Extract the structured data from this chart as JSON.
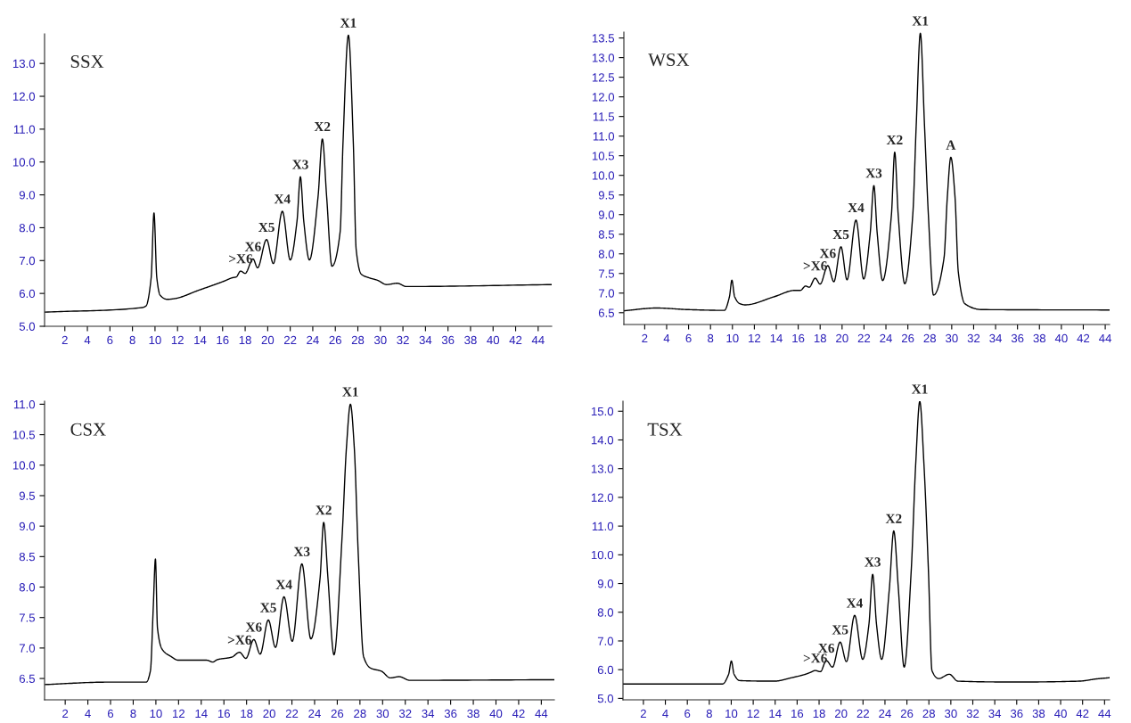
{
  "chart_data": [
    {
      "type": "line",
      "title": "SSX",
      "xlim": [
        0.2,
        45.2
      ],
      "ylim": [
        5.0,
        13.9
      ],
      "xticks": [
        2,
        4,
        6,
        8,
        10,
        12,
        14,
        16,
        18,
        20,
        22,
        24,
        26,
        28,
        30,
        32,
        34,
        36,
        38,
        40,
        42,
        44
      ],
      "yticks": [
        {
          "value": 5,
          "label": "5.0"
        },
        {
          "value": 6,
          "label": "6.0"
        },
        {
          "value": 7,
          "label": "7.0"
        },
        {
          "value": 8,
          "label": "8.0"
        },
        {
          "value": 9,
          "label": "9.0"
        },
        {
          "value": 10,
          "label": "10.0"
        },
        {
          "value": 11,
          "label": "11.0"
        },
        {
          "value": 12,
          "label": "12.0"
        },
        {
          "value": 13,
          "label": "13.0"
        }
      ],
      "series": [
        {
          "color": "#000000",
          "x": [
            0.2,
            8.87,
            9.2,
            9.66,
            9.91,
            10.16,
            10.45,
            11.1,
            11.7,
            13.9,
            16.1,
            16.9,
            17.2,
            17.6,
            18.0,
            18.7,
            19.1,
            19.9,
            20.5,
            21.3,
            22.0,
            22.6,
            22.9,
            23.2,
            23.7,
            24.47,
            24.85,
            25.23,
            25.7,
            26.43,
            26.68,
            27.16,
            27.6,
            27.85,
            28.3,
            28.96,
            29.75,
            30.55,
            31.5,
            32.3,
            45.2
          ],
          "values": [
            5.43,
            5.57,
            5.62,
            6.48,
            8.45,
            6.48,
            5.95,
            5.82,
            5.84,
            6.1,
            6.37,
            6.48,
            6.5,
            6.68,
            6.61,
            7.05,
            6.78,
            7.64,
            6.91,
            8.5,
            7.02,
            8.2,
            9.55,
            8.2,
            7.02,
            8.95,
            10.7,
            8.95,
            6.83,
            7.88,
            10.56,
            13.86,
            10.56,
            7.34,
            6.59,
            6.48,
            6.4,
            6.27,
            6.31,
            6.21,
            6.27
          ]
        }
      ],
      "annotations": [
        {
          "text": ">X6",
          "x": 17.6,
          "y": 6.68
        },
        {
          "text": "X6",
          "x": 18.7,
          "y": 7.05
        },
        {
          "text": "X5",
          "x": 19.9,
          "y": 7.64
        },
        {
          "text": "X4",
          "x": 21.3,
          "y": 8.5
        },
        {
          "text": "X3",
          "x": 22.9,
          "y": 9.55
        },
        {
          "text": "X2",
          "x": 24.85,
          "y": 10.7
        },
        {
          "text": "X1",
          "x": 27.16,
          "y": 13.86
        }
      ]
    },
    {
      "type": "line",
      "title": "WSX",
      "xlim": [
        0.1,
        44.4
      ],
      "ylim": [
        6.2,
        13.65
      ],
      "xticks": [
        2,
        4,
        6,
        8,
        10,
        12,
        14,
        16,
        18,
        20,
        22,
        24,
        26,
        28,
        30,
        32,
        34,
        36,
        38,
        40,
        42,
        44
      ],
      "yticks": [
        6.5,
        {
          "value": 7,
          "label": "7.0"
        },
        7.5,
        {
          "value": 8,
          "label": "8.0"
        },
        8.5,
        {
          "value": 9,
          "label": "9.0"
        },
        9.5,
        {
          "value": 10,
          "label": "10.0"
        },
        10.5,
        {
          "value": 11,
          "label": "11.0"
        },
        11.5,
        {
          "value": 12,
          "label": "12.0"
        },
        12.5,
        {
          "value": 13,
          "label": "13.0"
        },
        13.5
      ],
      "series": [
        {
          "color": "#000000",
          "x": [
            0.1,
            3.1,
            5.94,
            9.26,
            9.73,
            9.95,
            10.2,
            10.68,
            11.15,
            13.83,
            15.7,
            16.2,
            16.67,
            17.0,
            17.55,
            18.0,
            18.7,
            19.25,
            19.9,
            20.45,
            21.27,
            21.97,
            22.57,
            22.9,
            23.2,
            23.7,
            24.5,
            24.8,
            25.12,
            25.72,
            26.45,
            26.76,
            27.14,
            27.52,
            27.87,
            28.34,
            29.3,
            29.6,
            29.92,
            30.3,
            30.6,
            31.2,
            32.76,
            44.4
          ],
          "values": [
            6.55,
            6.62,
            6.58,
            6.56,
            6.91,
            7.33,
            6.91,
            6.73,
            6.7,
            6.91,
            7.07,
            7.07,
            7.18,
            7.15,
            7.38,
            7.23,
            7.7,
            7.29,
            8.18,
            7.34,
            8.86,
            7.36,
            8.54,
            9.74,
            8.54,
            7.32,
            8.99,
            10.59,
            8.99,
            7.24,
            9.0,
            11.26,
            13.62,
            11.26,
            9.0,
            6.95,
            7.9,
            9.45,
            10.46,
            9.45,
            7.54,
            6.73,
            6.58,
            6.57
          ]
        }
      ],
      "annotations": [
        {
          "text": ">X6",
          "x": 17.55,
          "y": 7.38
        },
        {
          "text": "X6",
          "x": 18.7,
          "y": 7.7
        },
        {
          "text": "X5",
          "x": 19.9,
          "y": 8.18
        },
        {
          "text": "X4",
          "x": 21.27,
          "y": 8.86
        },
        {
          "text": "X3",
          "x": 22.9,
          "y": 9.74
        },
        {
          "text": "X2",
          "x": 24.8,
          "y": 10.59
        },
        {
          "text": "X1",
          "x": 27.14,
          "y": 13.62
        },
        {
          "text": "A",
          "x": 29.92,
          "y": 10.46
        }
      ]
    },
    {
      "type": "line",
      "title": "CSX",
      "xlim": [
        0.18,
        45.15
      ],
      "ylim": [
        6.15,
        11.05
      ],
      "xticks": [
        2,
        4,
        6,
        8,
        10,
        12,
        14,
        16,
        18,
        20,
        22,
        24,
        26,
        28,
        30,
        32,
        34,
        36,
        38,
        40,
        42,
        44
      ],
      "yticks": [
        6.5,
        {
          "value": 7,
          "label": "7.0"
        },
        7.5,
        {
          "value": 8,
          "label": "8.0"
        },
        8.5,
        {
          "value": 9,
          "label": "9.0"
        },
        9.5,
        {
          "value": 10,
          "label": "10.0"
        },
        10.5,
        {
          "value": 11,
          "label": "11.0"
        }
      ],
      "series": [
        {
          "color": "#000000",
          "x": [
            0.18,
            5.68,
            9.14,
            9.52,
            9.77,
            9.96,
            10.14,
            10.55,
            11.34,
            11.97,
            14.48,
            15.02,
            15.43,
            16.69,
            17.38,
            17.94,
            18.64,
            19.2,
            19.92,
            20.55,
            21.3,
            22.03,
            22.88,
            23.67,
            24.48,
            24.8,
            25.18,
            25.71,
            26.43,
            26.81,
            27.16,
            27.5,
            27.85,
            28.32,
            28.95,
            29.89,
            30.68,
            31.46,
            32.4,
            45.15
          ],
          "values": [
            6.4,
            6.44,
            6.44,
            6.63,
            7.67,
            8.46,
            7.33,
            6.98,
            6.86,
            6.8,
            6.8,
            6.77,
            6.81,
            6.85,
            6.93,
            6.83,
            7.14,
            6.9,
            7.46,
            7.01,
            7.84,
            7.11,
            8.38,
            7.15,
            8.14,
            9.06,
            8.14,
            6.89,
            8.84,
            10.29,
            11.0,
            10.29,
            8.55,
            6.86,
            6.67,
            6.62,
            6.51,
            6.53,
            6.47,
            6.48
          ]
        }
      ],
      "annotations": [
        {
          "text": ">X6",
          "x": 17.38,
          "y": 6.93
        },
        {
          "text": "X6",
          "x": 18.64,
          "y": 7.14
        },
        {
          "text": "X5",
          "x": 19.92,
          "y": 7.46
        },
        {
          "text": "X4",
          "x": 21.3,
          "y": 7.84
        },
        {
          "text": "X3",
          "x": 22.88,
          "y": 8.38
        },
        {
          "text": "X2",
          "x": 24.8,
          "y": 9.06
        },
        {
          "text": "X1",
          "x": 27.16,
          "y": 11.0
        }
      ]
    },
    {
      "type": "line",
      "title": "TSX",
      "xlim": [
        0.14,
        44.46
      ],
      "ylim": [
        4.95,
        15.35
      ],
      "xticks": [
        2,
        4,
        6,
        8,
        10,
        12,
        14,
        16,
        18,
        20,
        22,
        24,
        26,
        28,
        30,
        32,
        34,
        36,
        38,
        40,
        42,
        44
      ],
      "yticks": [
        {
          "value": 5,
          "label": "5.0"
        },
        {
          "value": 6,
          "label": "6.0"
        },
        {
          "value": 7,
          "label": "7.0"
        },
        {
          "value": 8,
          "label": "8.0"
        },
        {
          "value": 9,
          "label": "9.0"
        },
        {
          "value": 10,
          "label": "10.0"
        },
        {
          "value": 11,
          "label": "11.0"
        },
        {
          "value": 12,
          "label": "12.0"
        },
        {
          "value": 13,
          "label": "13.0"
        },
        {
          "value": 14,
          "label": "14.0"
        },
        {
          "value": 15,
          "label": "15.0"
        }
      ],
      "series": [
        {
          "color": "#000000",
          "x": [
            0.14,
            9.19,
            9.76,
            10.01,
            10.26,
            10.77,
            13.92,
            15.5,
            16.76,
            17.24,
            17.65,
            18.12,
            18.66,
            19.22,
            19.92,
            20.49,
            21.24,
            21.97,
            22.54,
            22.88,
            23.23,
            23.7,
            24.4,
            24.8,
            25.22,
            25.75,
            26.39,
            26.8,
            27.17,
            27.55,
            27.96,
            28.28,
            28.9,
            29.86,
            30.64,
            36.0,
            41.7,
            43.3,
            44.46
          ],
          "values": [
            5.5,
            5.5,
            5.84,
            6.3,
            5.84,
            5.62,
            5.6,
            5.72,
            5.84,
            5.91,
            5.97,
            5.93,
            6.32,
            6.09,
            6.96,
            6.28,
            7.89,
            6.36,
            7.58,
            9.32,
            7.58,
            6.36,
            8.82,
            10.83,
            8.82,
            6.09,
            9.44,
            13.16,
            15.34,
            13.16,
            9.44,
            5.97,
            5.69,
            5.84,
            5.6,
            5.57,
            5.6,
            5.68,
            5.72
          ]
        }
      ],
      "annotations": [
        {
          "text": ">X6",
          "x": 17.65,
          "y": 5.97
        },
        {
          "text": "X6",
          "x": 18.66,
          "y": 6.32
        },
        {
          "text": "X5",
          "x": 19.92,
          "y": 6.96
        },
        {
          "text": "X4",
          "x": 21.24,
          "y": 7.89
        },
        {
          "text": "X3",
          "x": 22.88,
          "y": 9.32
        },
        {
          "text": "X2",
          "x": 24.8,
          "y": 10.83
        },
        {
          "text": "X1",
          "x": 27.17,
          "y": 15.34
        }
      ]
    }
  ]
}
